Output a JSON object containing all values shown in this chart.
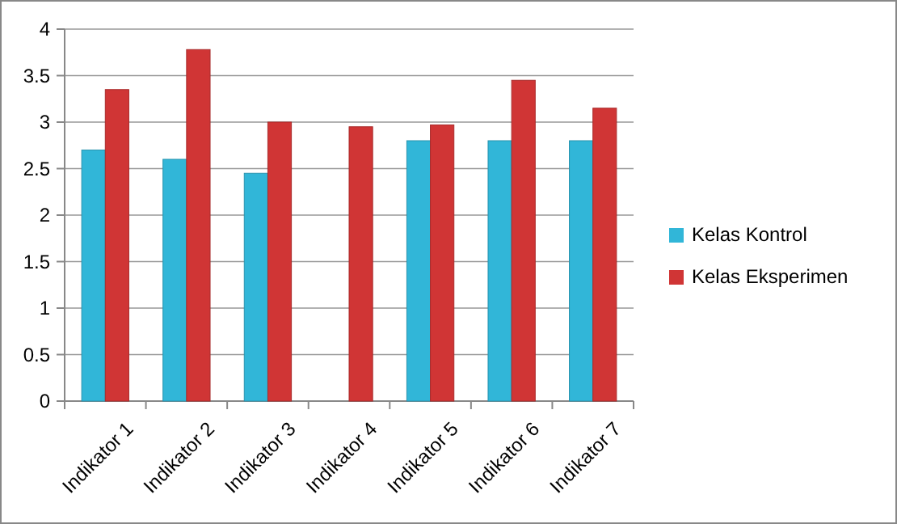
{
  "chart_data": {
    "type": "bar",
    "categories": [
      "Indikator 1",
      "Indikator 2",
      "Indikator 3",
      "Indikator 4",
      "Indikator 5",
      "Indikator 6",
      "Indikator 7"
    ],
    "series": [
      {
        "name": "Kelas Kontrol",
        "color": "#31b6d8",
        "values": [
          2.7,
          2.6,
          2.45,
          null,
          2.8,
          2.8,
          2.8
        ]
      },
      {
        "name": "Kelas Eksperimen",
        "color": "#d03535",
        "values": [
          3.35,
          3.78,
          3.0,
          2.95,
          2.97,
          3.45,
          3.15
        ]
      }
    ],
    "ylim": [
      0,
      4
    ],
    "yticks": [
      0,
      0.5,
      1,
      1.5,
      2,
      2.5,
      3,
      3.5,
      4
    ],
    "grid": "y",
    "legend": "right"
  }
}
